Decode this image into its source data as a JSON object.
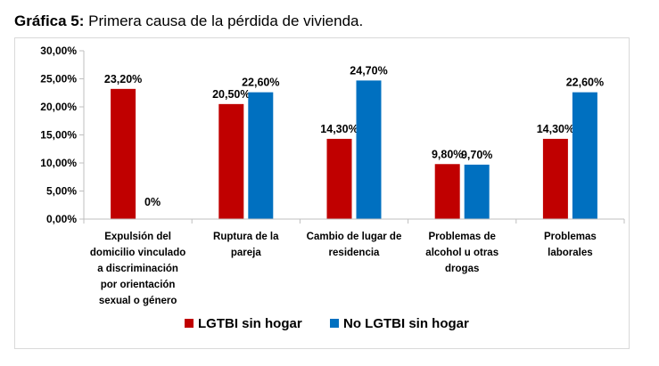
{
  "caption": {
    "prefix": "Gráfica 5:",
    "text": " Primera causa de la pérdida de vivienda."
  },
  "chart_data": {
    "type": "bar",
    "title": "Primera causa de la pérdida de vivienda.",
    "categories": [
      [
        "Expulsión del",
        "domicilio vinculado",
        "a discriminación",
        "por orientación",
        "sexual o género"
      ],
      [
        "Ruptura de la",
        "pareja"
      ],
      [
        "Cambio de lugar de",
        "residencia"
      ],
      [
        "Problemas de",
        "alcohol u otras",
        "drogas"
      ],
      [
        "Problemas",
        "laborales"
      ]
    ],
    "series": [
      {
        "name": "LGTBI sin hogar",
        "color": "#c00000",
        "values": [
          23.2,
          20.5,
          14.3,
          9.8,
          14.3
        ],
        "labels": [
          "23,20%",
          "20,50%",
          "14,30%",
          "9,80%",
          "14,30%"
        ]
      },
      {
        "name": "No LGTBI sin hogar",
        "color": "#0070c0",
        "values": [
          0,
          22.6,
          24.7,
          9.7,
          22.6
        ],
        "labels": [
          "0%",
          "22,60%",
          "24,70%",
          "9,70%",
          "22,60%"
        ]
      }
    ],
    "yticks": [
      "0,00%",
      "5,00%",
      "10,00%",
      "15,00%",
      "20,00%",
      "25,00%",
      "30,00%"
    ],
    "ylim": [
      0,
      30
    ],
    "legend_position": "bottom",
    "grid": false
  }
}
